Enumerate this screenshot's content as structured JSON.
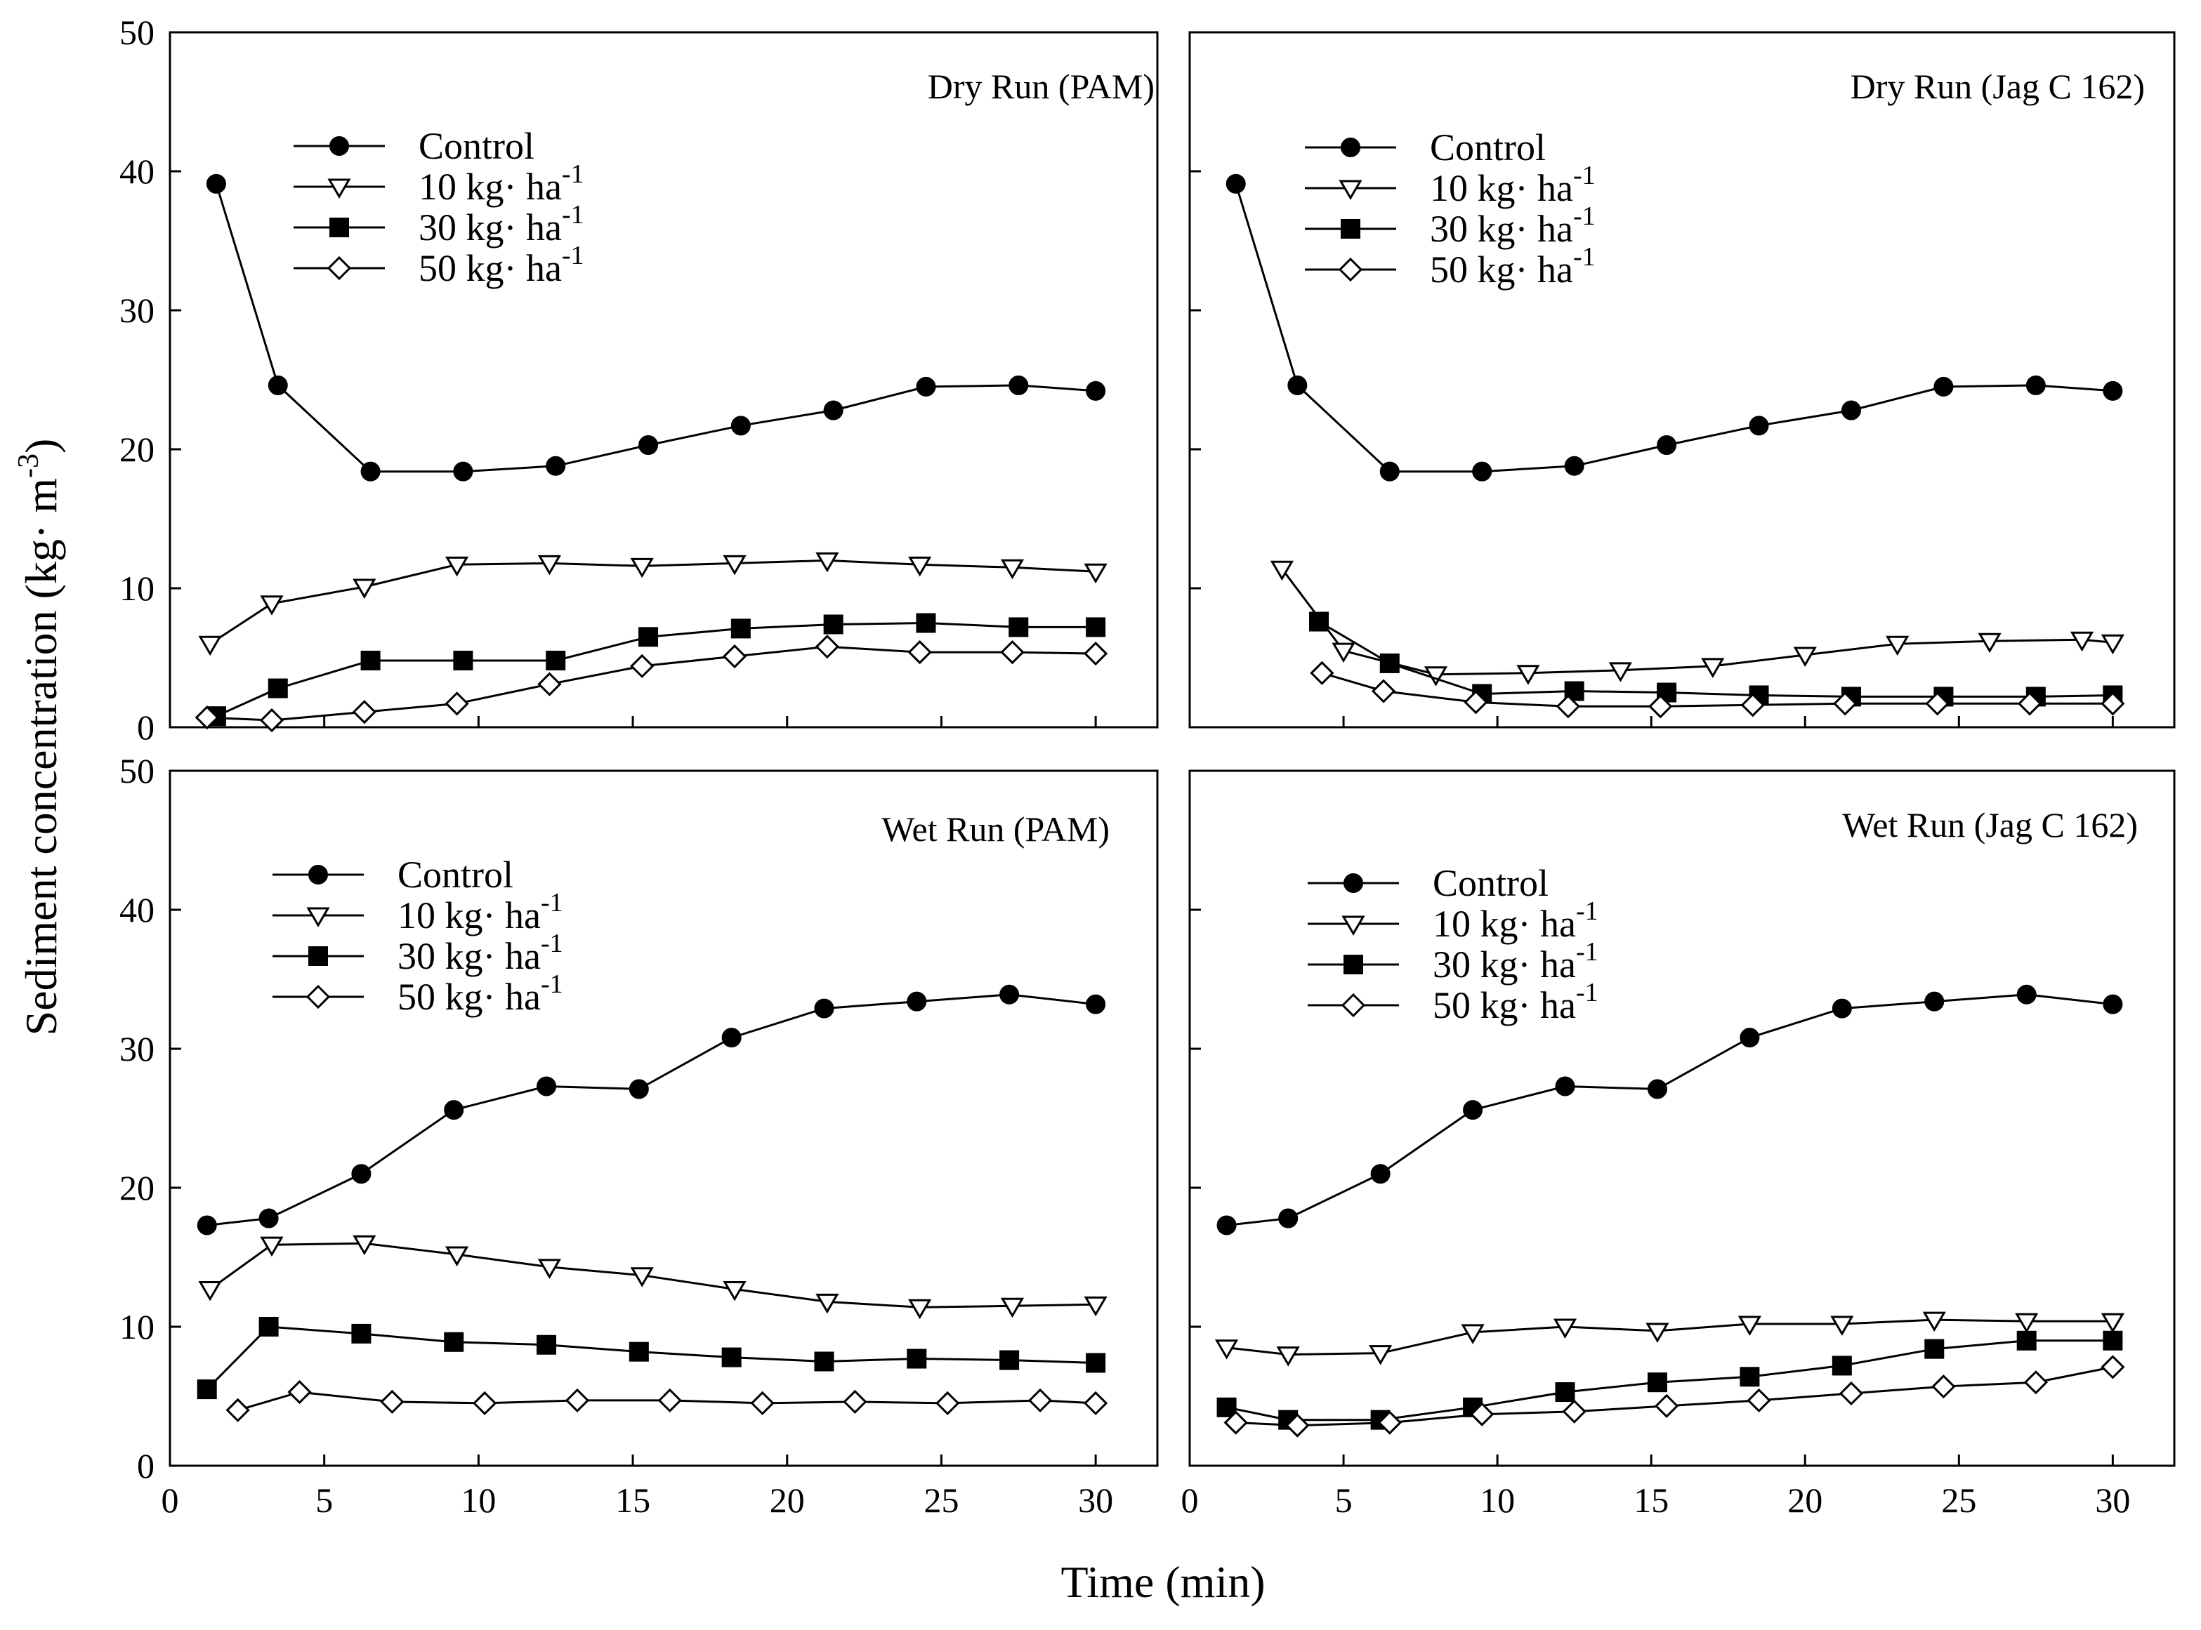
{
  "figure": {
    "xlabel": "Time (min)",
    "ylabel": "Sediment concentration (kg· m-3)",
    "ylabel_main": "Sediment concentration (kg· m",
    "ylabel_sup": "-3",
    "ylabel_close": ")"
  },
  "legend_entries": [
    {
      "key": "control",
      "text": "Control",
      "sup": "",
      "marker": "circle-filled"
    },
    {
      "key": "d10",
      "text": "10 kg·  ha",
      "sup": "-1",
      "marker": "triangle-down-open"
    },
    {
      "key": "d30",
      "text": "30 kg·  ha",
      "sup": "-1",
      "marker": "square-filled"
    },
    {
      "key": "d50",
      "text": "50 kg·  ha",
      "sup": "-1",
      "marker": "diamond-open"
    }
  ],
  "chart_data": [
    {
      "type": "line",
      "title": "Dry Run  (PAM)",
      "xlim": [
        0,
        32
      ],
      "ylim": [
        0,
        50
      ],
      "xticks": [
        0,
        5,
        10,
        15,
        20,
        25,
        30
      ],
      "yticks": [
        0,
        10,
        20,
        30,
        40,
        50
      ],
      "series": [
        {
          "name": "Control",
          "x": [
            1.5,
            3.5,
            6.5,
            9.5,
            12.5,
            15.5,
            18.5,
            21.5,
            24.5,
            27.5,
            30.0
          ],
          "y": [
            39.1,
            24.6,
            18.4,
            18.4,
            18.8,
            20.3,
            21.7,
            22.8,
            24.5,
            24.6,
            24.2
          ]
        },
        {
          "name": "10 kg· ha-1",
          "x": [
            1.3,
            3.3,
            6.3,
            9.3,
            12.3,
            15.3,
            18.3,
            21.3,
            24.3,
            27.3,
            30.0
          ],
          "y": [
            6.0,
            8.9,
            10.1,
            11.7,
            11.8,
            11.6,
            11.8,
            12.0,
            11.7,
            11.5,
            11.2
          ]
        },
        {
          "name": "30 kg· ha-1",
          "x": [
            1.5,
            3.5,
            6.5,
            9.5,
            12.5,
            15.5,
            18.5,
            21.5,
            24.5,
            27.5,
            30.0
          ],
          "y": [
            0.8,
            2.8,
            4.8,
            4.8,
            4.8,
            6.5,
            7.1,
            7.4,
            7.5,
            7.2,
            7.2
          ]
        },
        {
          "name": "50 kg· ha-1",
          "x": [
            1.2,
            3.3,
            6.3,
            9.3,
            12.3,
            15.3,
            18.3,
            21.3,
            24.3,
            27.3,
            30.0
          ],
          "y": [
            0.7,
            0.5,
            1.1,
            1.7,
            3.1,
            4.4,
            5.1,
            5.8,
            5.4,
            5.4,
            5.3
          ]
        }
      ]
    },
    {
      "type": "line",
      "title": "Dry Run (Jag C 162)",
      "xlim": [
        0,
        32
      ],
      "ylim": [
        0,
        50
      ],
      "xticks": [
        0,
        5,
        10,
        15,
        20,
        25,
        30
      ],
      "yticks": [
        0,
        10,
        20,
        30,
        40,
        50
      ],
      "series": [
        {
          "name": "Control",
          "x": [
            1.5,
            3.5,
            6.5,
            9.5,
            12.5,
            15.5,
            18.5,
            21.5,
            24.5,
            27.5,
            30.0
          ],
          "y": [
            39.1,
            24.6,
            18.4,
            18.4,
            18.8,
            20.3,
            21.7,
            22.8,
            24.5,
            24.6,
            24.2
          ]
        },
        {
          "name": "10 kg· ha-1",
          "x": [
            3.0,
            5.0,
            8.0,
            11.0,
            14.0,
            17.0,
            20.0,
            23.0,
            26.0,
            29.0,
            30.0
          ],
          "y": [
            11.4,
            5.5,
            3.8,
            3.9,
            4.1,
            4.4,
            5.2,
            6.0,
            6.2,
            6.3,
            6.1
          ]
        },
        {
          "name": "30 kg· ha-1",
          "x": [
            4.2,
            6.5,
            9.5,
            12.5,
            15.5,
            18.5,
            21.5,
            24.5,
            27.5,
            30.0
          ],
          "y": [
            7.6,
            4.6,
            2.4,
            2.6,
            2.5,
            2.3,
            2.2,
            2.2,
            2.2,
            2.3
          ]
        },
        {
          "name": "50 kg· ha-1",
          "x": [
            4.3,
            6.3,
            9.3,
            12.3,
            15.3,
            18.3,
            21.3,
            24.3,
            27.3,
            30.0
          ],
          "y": [
            3.9,
            2.6,
            1.8,
            1.5,
            1.5,
            1.6,
            1.7,
            1.7,
            1.7,
            1.7
          ]
        }
      ]
    },
    {
      "type": "line",
      "title": "Wet Run (PAM)",
      "xlim": [
        0,
        32
      ],
      "ylim": [
        0,
        50
      ],
      "xticks": [
        0,
        5,
        10,
        15,
        20,
        25,
        30
      ],
      "yticks": [
        0,
        10,
        20,
        30,
        40,
        50
      ],
      "series": [
        {
          "name": "Control",
          "x": [
            1.2,
            3.2,
            6.2,
            9.2,
            12.2,
            15.2,
            18.2,
            21.2,
            24.2,
            27.2,
            30.0
          ],
          "y": [
            17.3,
            17.8,
            21.0,
            25.6,
            27.3,
            27.1,
            30.8,
            32.9,
            33.4,
            33.9,
            33.2
          ]
        },
        {
          "name": "10 kg· ha-1",
          "x": [
            1.3,
            3.3,
            6.3,
            9.3,
            12.3,
            15.3,
            18.3,
            21.3,
            24.3,
            27.3,
            30.0
          ],
          "y": [
            12.7,
            15.9,
            16.0,
            15.2,
            14.3,
            13.7,
            12.7,
            11.8,
            11.4,
            11.5,
            11.6
          ]
        },
        {
          "name": "30 kg· ha-1",
          "x": [
            1.2,
            3.2,
            6.2,
            9.2,
            12.2,
            15.2,
            18.2,
            21.2,
            24.2,
            27.2,
            30.0
          ],
          "y": [
            5.5,
            10.0,
            9.5,
            8.9,
            8.7,
            8.2,
            7.8,
            7.5,
            7.7,
            7.6,
            7.4
          ]
        },
        {
          "name": "50 kg· ha-1",
          "x": [
            2.2,
            4.2,
            7.2,
            10.2,
            13.2,
            16.2,
            19.2,
            22.2,
            25.2,
            28.2,
            30.0
          ],
          "y": [
            4.0,
            5.3,
            4.6,
            4.5,
            4.7,
            4.7,
            4.5,
            4.6,
            4.5,
            4.7,
            4.5
          ]
        }
      ]
    },
    {
      "type": "line",
      "title": "Wet Run (Jag C 162)",
      "xlim": [
        0,
        32
      ],
      "ylim": [
        0,
        50
      ],
      "xticks": [
        0,
        5,
        10,
        15,
        20,
        25,
        30
      ],
      "yticks": [
        0,
        10,
        20,
        30,
        40,
        50
      ],
      "series": [
        {
          "name": "Control",
          "x": [
            1.2,
            3.2,
            6.2,
            9.2,
            12.2,
            15.2,
            18.2,
            21.2,
            24.2,
            27.2,
            30.0
          ],
          "y": [
            17.3,
            17.8,
            21.0,
            25.6,
            27.3,
            27.1,
            30.8,
            32.9,
            33.4,
            33.9,
            33.2
          ]
        },
        {
          "name": "10 kg· ha-1",
          "x": [
            1.2,
            3.2,
            6.2,
            9.2,
            12.2,
            15.2,
            18.2,
            21.2,
            24.2,
            27.2,
            30.0
          ],
          "y": [
            8.5,
            8.0,
            8.1,
            9.6,
            10.0,
            9.7,
            10.2,
            10.2,
            10.5,
            10.4,
            10.4
          ]
        },
        {
          "name": "30 kg· ha-1",
          "x": [
            1.2,
            3.2,
            6.2,
            9.2,
            12.2,
            15.2,
            18.2,
            21.2,
            24.2,
            27.2,
            30.0
          ],
          "y": [
            4.2,
            3.3,
            3.3,
            4.2,
            5.3,
            6.0,
            6.4,
            7.2,
            8.4,
            9.0,
            9.0
          ]
        },
        {
          "name": "50 kg· ha-1",
          "x": [
            1.5,
            3.5,
            6.5,
            9.5,
            12.5,
            15.5,
            18.5,
            21.5,
            24.5,
            27.5,
            30.0
          ],
          "y": [
            3.1,
            2.9,
            3.1,
            3.7,
            3.9,
            4.3,
            4.7,
            5.2,
            5.7,
            6.0,
            7.1
          ]
        }
      ]
    }
  ]
}
